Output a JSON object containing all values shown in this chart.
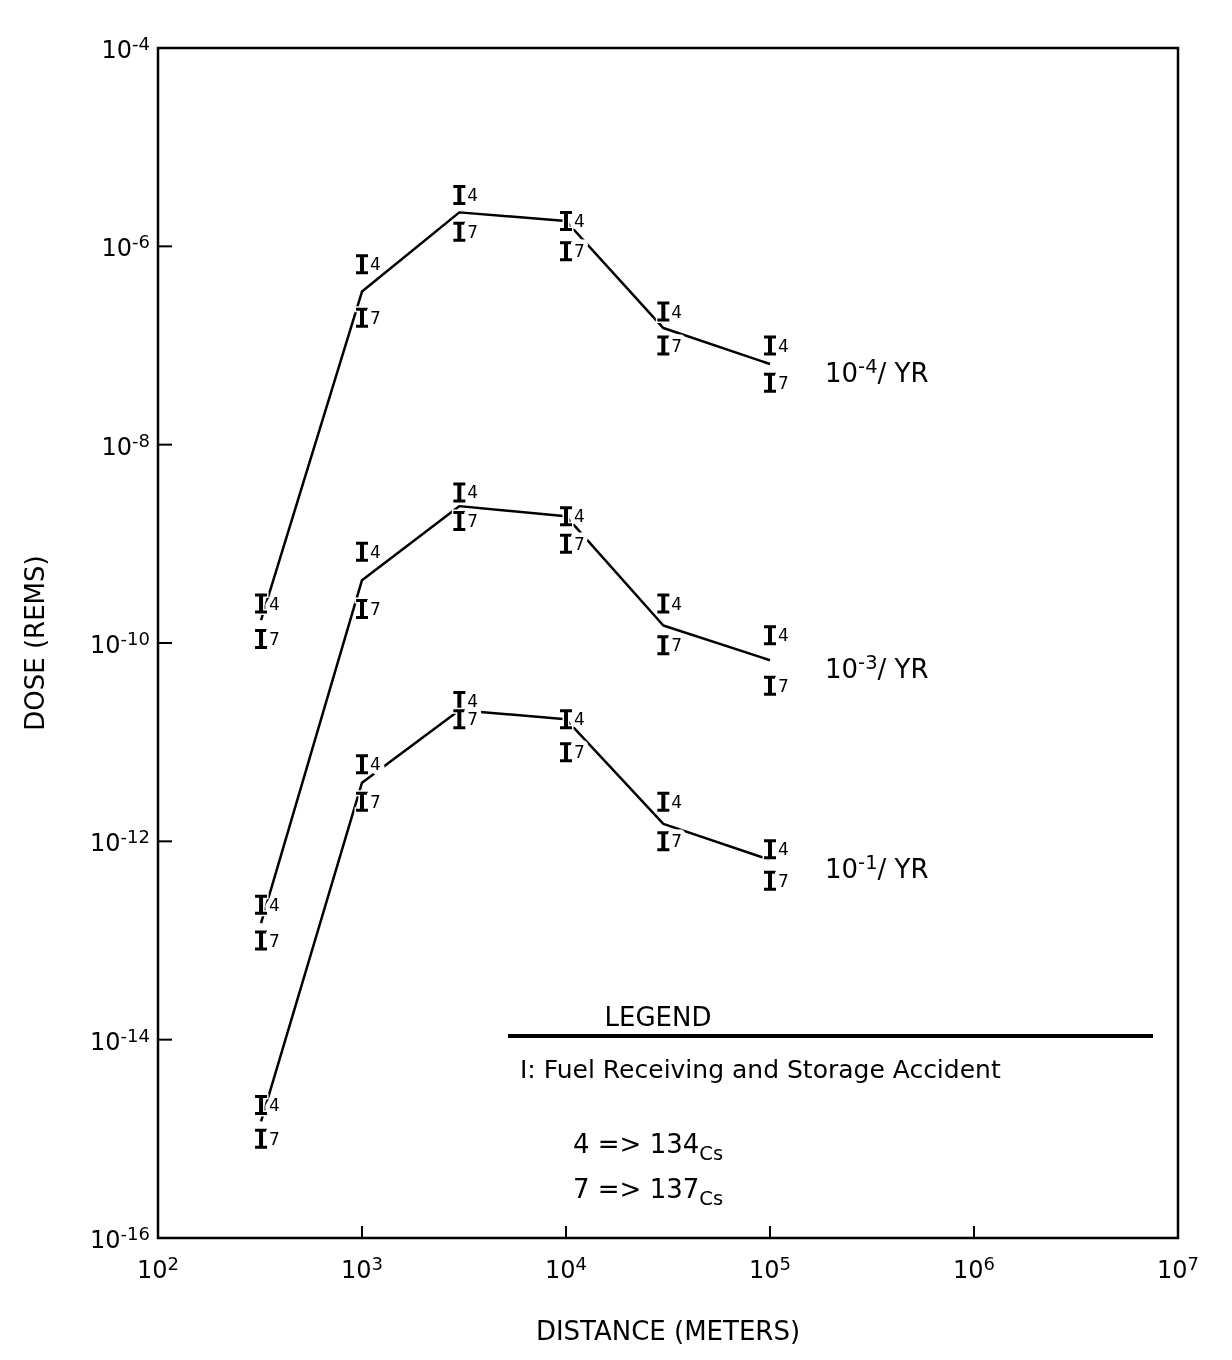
{
  "chart_data": {
    "type": "scatter",
    "xlabel": "DISTANCE (METERS)",
    "ylabel": "DOSE (REMS)",
    "legend_title": "LEGEND",
    "log": "xy",
    "grid": false,
    "x": [
      320,
      1000,
      3000,
      10000,
      30000,
      100000
    ],
    "xlim": [
      100,
      10000000
    ],
    "ylim": [
      1e-16,
      0.0001
    ],
    "xticks": [
      {
        "value": 100,
        "label": "10$^{2}$"
      },
      {
        "value": 1000,
        "label": "10$^{3}$"
      },
      {
        "value": 10000,
        "label": "10$^{4}$"
      },
      {
        "value": 100000,
        "label": "10$^{5}$"
      },
      {
        "value": 1000000,
        "label": "10$^{6}$"
      },
      {
        "value": 10000000,
        "label": "10$^{7}$"
      }
    ],
    "yticks": [
      {
        "value": 1e-16,
        "label": "10$^{-16}$"
      },
      {
        "value": 1e-14,
        "label": "10$^{-14}$"
      },
      {
        "value": 1e-12,
        "label": "10$^{-12}$"
      },
      {
        "value": 1e-10,
        "label": "10$^{-10}$"
      },
      {
        "value": 1e-08,
        "label": "10$^{-8}$"
      },
      {
        "value": 1e-06,
        "label": "10$^{-6}$"
      },
      {
        "value": 0.0001,
        "label": "10$^{-4}$"
      }
    ],
    "series": [
      {
        "type": "line",
        "name": "10$^{-4}$/ YR",
        "color": "#000000",
        "values": [
          1.7e-10,
          3.5e-07,
          2.2e-06,
          1.8e-06,
          1.5e-07,
          6.5e-08
        ]
      },
      {
        "type": "line",
        "name": "10$^{-3}$/ YR",
        "color": "#000000",
        "values": [
          1.5e-13,
          4.3e-10,
          2.4e-09,
          1.9e-09,
          1.5e-10,
          6.7e-11
        ]
      },
      {
        "type": "line",
        "name": "10$^{-1}$/ YR",
        "color": "#000000",
        "values": [
          1.5e-15,
          3.9e-12,
          2.1e-11,
          1.7e-11,
          1.5e-12,
          6.5e-13
        ]
      },
      {
        "name": "4",
        "color": "#000000",
        "values": [
          2.5e-10,
          6.6e-07,
          3.3e-06,
          1.8e-06,
          2.2e-07,
          1e-07
        ]
      },
      {
        "name": "7",
        "color": "#000000",
        "values": [
          1.1e-10,
          1.9e-07,
          1.4e-06,
          8.9e-07,
          1e-07,
          4.2e-08
        ]
      },
      {
        "name": "4",
        "color": "#000000",
        "values": [
          2.3e-13,
          8.3e-10,
          3.3e-09,
          1.9e-09,
          2.5e-10,
          1.2e-10
        ]
      },
      {
        "name": "7",
        "color": "#000000",
        "values": [
          1e-13,
          2.2e-10,
          1.7e-09,
          1e-09,
          9.5e-11,
          3.7e-11
        ]
      },
      {
        "name": "4",
        "color": "#000000",
        "values": [
          2.2e-15,
          6e-12,
          2.6e-11,
          1.7e-11,
          2.5e-12,
          8.3e-13
        ]
      },
      {
        "name": "7",
        "color": "#000000",
        "values": [
          1e-15,
          2.5e-12,
          1.7e-11,
          7.9e-12,
          1e-12,
          4e-13
        ]
      }
    ],
    "annotations": [
      "I: Fuel Receiving and Storage Accident",
      "4 => 134$_{Cs}$",
      "7 => 137$_{Cs}$"
    ]
  }
}
